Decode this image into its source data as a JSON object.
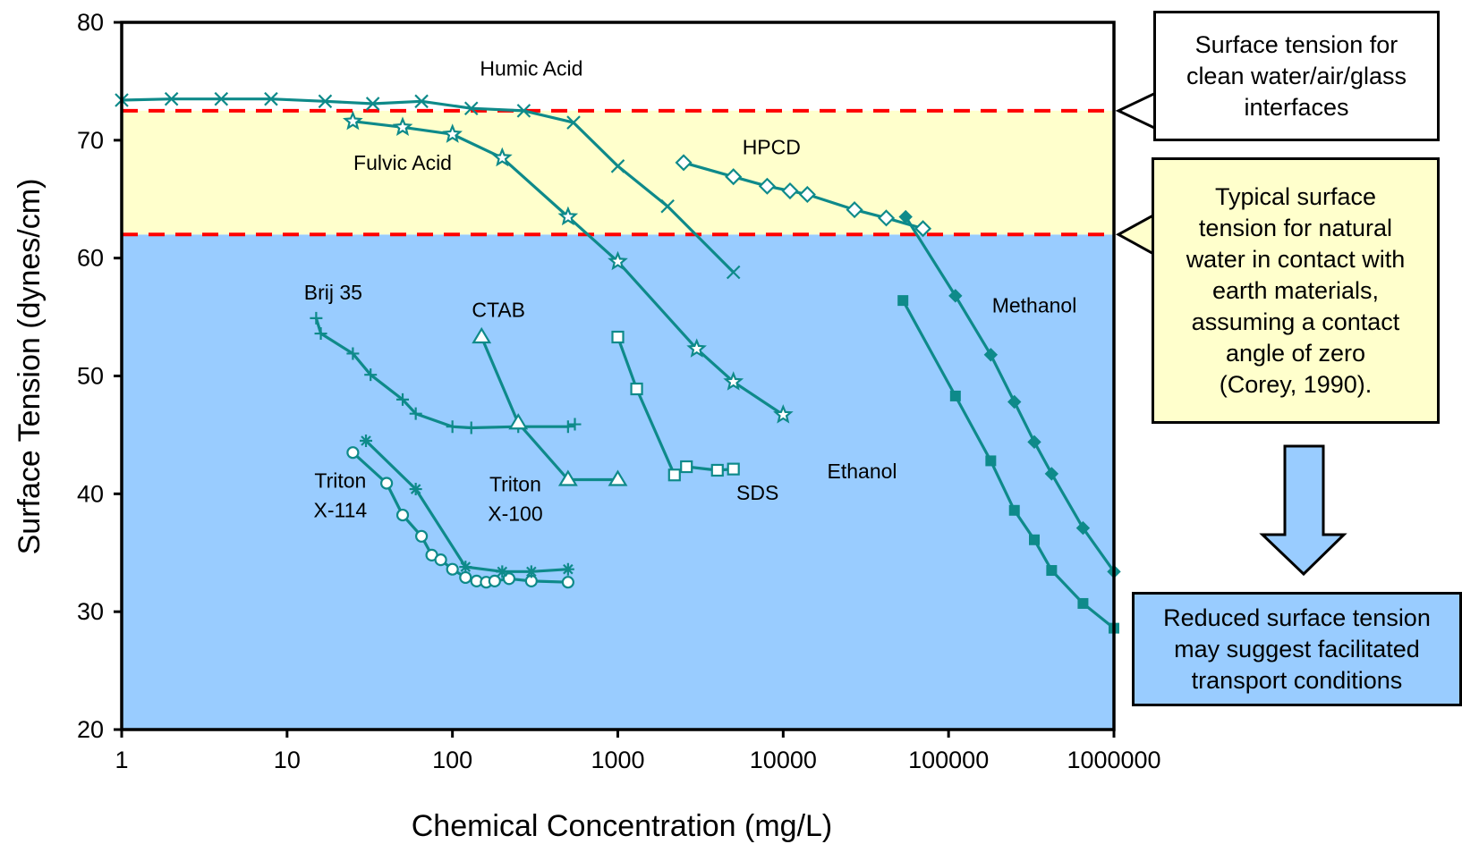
{
  "chart_data": {
    "type": "line",
    "xscale": "log",
    "xlabel": "Chemical Concentration (mg/L)",
    "ylabel": "Surface Tension (dynes/cm)",
    "xlim": [
      1,
      1000000
    ],
    "ylim": [
      20,
      80
    ],
    "xticks": [
      "1",
      "10",
      "100",
      "1000",
      "10000",
      "100000",
      "1000000"
    ],
    "yticks": [
      "20",
      "30",
      "40",
      "50",
      "60",
      "70",
      "80"
    ],
    "bands": [
      {
        "from": 20,
        "to": 62,
        "color": "#99ccff"
      },
      {
        "from": 62,
        "to": 72.5,
        "color": "#ffffcc"
      }
    ],
    "reference_lines": [
      {
        "y": 72.5,
        "color": "#ff0000",
        "style": "dashed"
      },
      {
        "y": 62,
        "color": "#ff0000",
        "style": "dashed"
      }
    ],
    "series": [
      {
        "name": "Humic Acid",
        "marker": "x",
        "x": [
          1,
          2,
          4,
          8,
          17,
          33,
          65,
          130,
          270,
          540,
          1000,
          2000,
          5000
        ],
        "y": [
          73.4,
          73.5,
          73.5,
          73.5,
          73.3,
          73.1,
          73.3,
          72.7,
          72.5,
          71.5,
          67.8,
          64.4,
          58.8
        ]
      },
      {
        "name": "Fulvic Acid",
        "marker": "star",
        "x": [
          25,
          50,
          100,
          200,
          500,
          1000,
          3000,
          5000,
          10000
        ],
        "y": [
          71.6,
          71.1,
          70.5,
          68.5,
          63.5,
          59.7,
          52.3,
          49.5,
          46.7
        ]
      },
      {
        "name": "HPCD",
        "marker": "diamond-open",
        "x": [
          2500,
          5000,
          8000,
          11000,
          14000,
          27000,
          42000,
          70000
        ],
        "y": [
          68.1,
          66.9,
          66.1,
          65.7,
          65.4,
          64.1,
          63.4,
          62.5
        ]
      },
      {
        "name": "Methanol",
        "marker": "diamond-filled",
        "x": [
          55000,
          110000,
          180000,
          250000,
          330000,
          420000,
          650000,
          1000000
        ],
        "y": [
          63.5,
          56.8,
          51.8,
          47.8,
          44.4,
          41.7,
          37.1,
          33.4
        ]
      },
      {
        "name": "Ethanol",
        "marker": "square-filled",
        "x": [
          53000,
          110000,
          180000,
          250000,
          330000,
          420000,
          650000,
          1000000
        ],
        "y": [
          56.4,
          48.3,
          42.8,
          38.6,
          36.1,
          33.5,
          30.7,
          28.6
        ]
      },
      {
        "name": "Brij 35",
        "marker": "plus",
        "x": [
          15,
          16,
          25,
          32,
          50,
          60,
          100,
          130,
          250,
          500,
          550
        ],
        "y": [
          54.9,
          53.6,
          51.9,
          50.1,
          48.0,
          46.8,
          45.7,
          45.6,
          45.7,
          45.7,
          45.9
        ]
      },
      {
        "name": "CTAB",
        "marker": "triangle-open",
        "x": [
          150,
          250,
          500,
          1000
        ],
        "y": [
          53.3,
          46.0,
          41.2,
          41.2
        ]
      },
      {
        "name": "SDS",
        "marker": "square-open",
        "x": [
          1000,
          1300,
          2200,
          2600,
          4000,
          5000
        ],
        "y": [
          53.3,
          48.9,
          41.6,
          42.3,
          42.0,
          42.1
        ]
      },
      {
        "name": "Triton X-114",
        "marker": "circle-open",
        "x": [
          25,
          40,
          50,
          65,
          75,
          85,
          100,
          120,
          140,
          160,
          180,
          220,
          300,
          500
        ],
        "y": [
          43.5,
          40.9,
          38.2,
          36.4,
          34.8,
          34.4,
          33.6,
          32.9,
          32.6,
          32.5,
          32.6,
          32.8,
          32.6,
          32.5
        ]
      },
      {
        "name": "Triton X-100",
        "marker": "asterisk",
        "x": [
          30,
          60,
          120,
          200,
          300,
          500
        ],
        "y": [
          44.5,
          40.4,
          33.8,
          33.4,
          33.4,
          33.6
        ]
      }
    ],
    "annotations": [
      {
        "text": "Humic Acid",
        "x": 300,
        "y": 75.5
      },
      {
        "text": "Fulvic Acid",
        "x": 50,
        "y": 67.5
      },
      {
        "text": "HPCD",
        "x": 8500,
        "y": 68.8
      },
      {
        "text": "Brij 35",
        "x": 19,
        "y": 56.5
      },
      {
        "text": "CTAB",
        "x": 190,
        "y": 55.0
      },
      {
        "text": "SDS",
        "x": 7000,
        "y": 39.5
      },
      {
        "text": "Methanol",
        "x": 330000,
        "y": 55.4
      },
      {
        "text": "Ethanol",
        "x": 30000,
        "y": 41.3
      },
      {
        "text": "Triton",
        "x": 21,
        "y": 40.5
      },
      {
        "text": "X-114",
        "x": 21,
        "y": 38.0
      },
      {
        "text": "Triton",
        "x": 240,
        "y": 40.2
      },
      {
        "text": "X-100",
        "x": 240,
        "y": 37.7
      }
    ],
    "color": "#0e8a8a"
  },
  "callouts": {
    "clean": "Surface tension for\nclean water/air/glass\ninterfaces",
    "natural": "Typical surface\ntension for natural\nwater in contact with\nearth materials,\nassuming a contact\nangle of zero\n(Corey, 1990).",
    "reduced": "Reduced surface tension\nmay suggest facilitated\ntransport conditions"
  },
  "colors": {
    "clean_box": "#ffffff",
    "natural_box": "#ffffcc",
    "reduced_box": "#99ccff",
    "arrow_fill": "#99ccff"
  }
}
